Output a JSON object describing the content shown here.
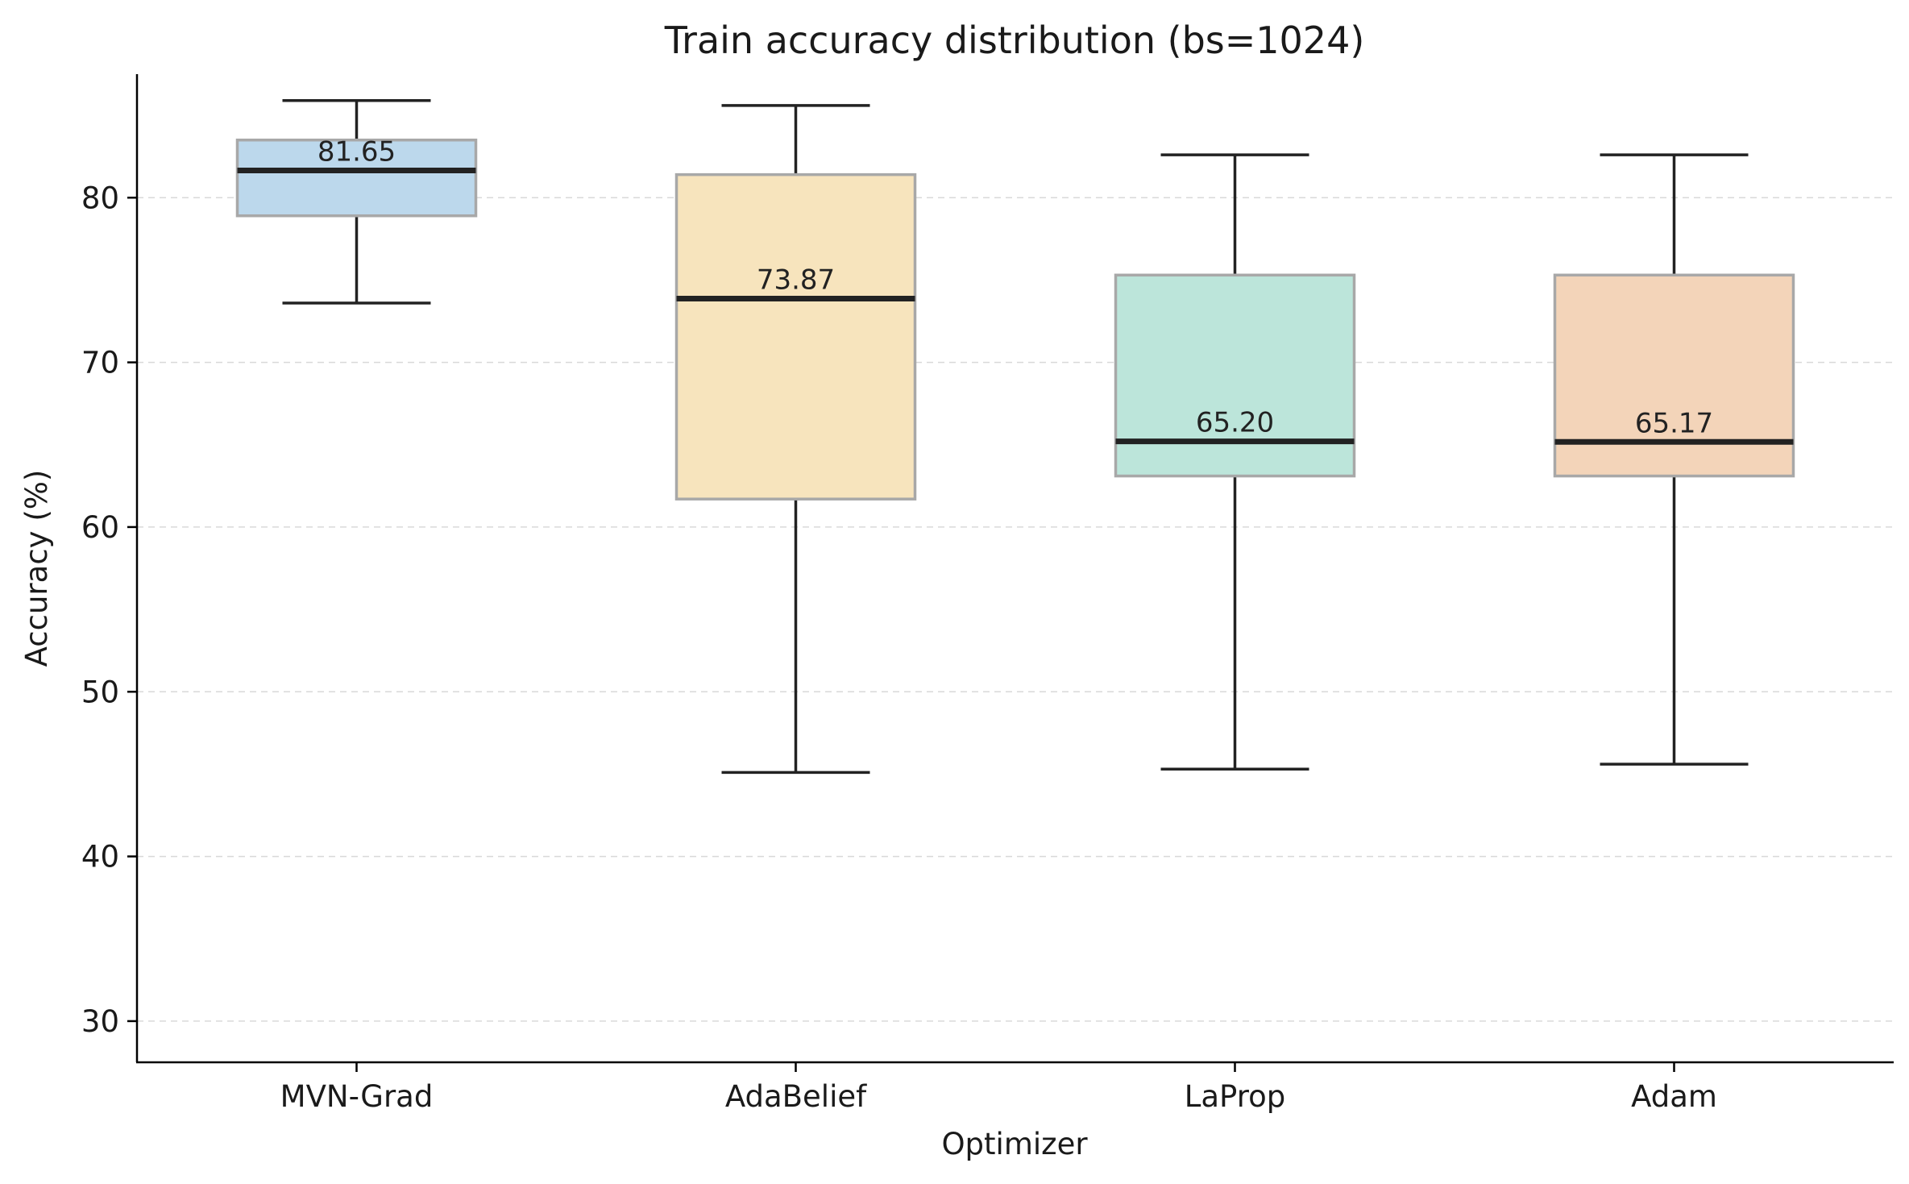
{
  "chart_data": {
    "type": "box",
    "title": "Train accuracy distribution (bs=1024)",
    "xlabel": "Optimizer",
    "ylabel": "Accuracy (%)",
    "ylim": [
      27.5,
      87.5
    ],
    "yticks": [
      30,
      40,
      50,
      60,
      70,
      80
    ],
    "grid": "y-dashed",
    "categories": [
      "MVN-Grad",
      "AdaBelief",
      "LaProp",
      "Adam"
    ],
    "boxes": [
      {
        "name": "MVN-Grad",
        "whisker_low": 73.6,
        "q1": 78.9,
        "median": 81.65,
        "q3": 83.5,
        "whisker_high": 85.9,
        "median_label": "81.65",
        "color": "#bcd8ec"
      },
      {
        "name": "AdaBelief",
        "whisker_low": 45.1,
        "q1": 61.7,
        "median": 73.87,
        "q3": 81.4,
        "whisker_high": 85.6,
        "median_label": "73.87",
        "color": "#f7e4bd"
      },
      {
        "name": "LaProp",
        "whisker_low": 45.3,
        "q1": 63.1,
        "median": 65.2,
        "q3": 75.3,
        "whisker_high": 82.6,
        "median_label": "65.20",
        "color": "#bce5da"
      },
      {
        "name": "Adam",
        "whisker_low": 45.6,
        "q1": 63.1,
        "median": 65.17,
        "q3": 75.3,
        "whisker_high": 82.6,
        "median_label": "65.17",
        "color": "#f3d4b9"
      }
    ]
  }
}
